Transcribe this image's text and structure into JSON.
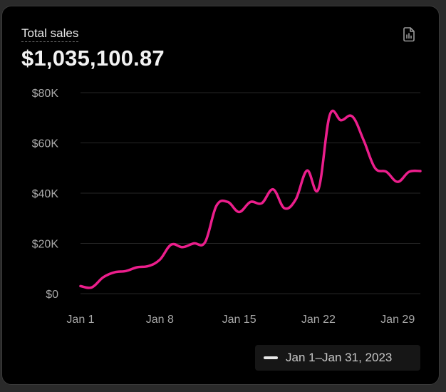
{
  "card": {
    "title": "Total sales",
    "total_value": "$1,035,100.87",
    "export_icon": "report-document-icon",
    "legend_label": "Jan 1–Jan 31, 2023"
  },
  "colors": {
    "line": "#ec1e8c",
    "background": "#000000",
    "grid": "#262626",
    "axis_text": "#a8a8a8"
  },
  "chart_data": {
    "type": "line",
    "title": "Total sales",
    "x_tick_labels": [
      "Jan 1",
      "Jan 8",
      "Jan 15",
      "Jan 22",
      "Jan 29"
    ],
    "x_tick_days": [
      1,
      8,
      15,
      22,
      29
    ],
    "y_tick_labels": [
      "$0",
      "$20K",
      "$40K",
      "$60K",
      "$80K"
    ],
    "y_ticks": [
      0,
      20000,
      40000,
      60000,
      80000
    ],
    "ylim": [
      0,
      80000
    ],
    "xlim": [
      1,
      31
    ],
    "grid": true,
    "legend_position": "bottom-right",
    "series": [
      {
        "name": "Jan 1–Jan 31, 2023",
        "x": [
          1,
          2,
          3,
          4,
          5,
          6,
          7,
          8,
          9,
          10,
          11,
          12,
          13,
          14,
          15,
          16,
          17,
          18,
          19,
          20,
          21,
          22,
          23,
          24,
          25,
          26,
          27,
          28,
          29,
          30,
          31
        ],
        "y": [
          3000,
          2500,
          6500,
          8500,
          9000,
          10500,
          11000,
          13500,
          19500,
          18500,
          20000,
          20500,
          35000,
          36500,
          32500,
          36500,
          36000,
          41500,
          34000,
          37500,
          49000,
          41500,
          71000,
          69000,
          70500,
          61000,
          50000,
          48500,
          44500,
          48500,
          48800
        ]
      }
    ]
  }
}
